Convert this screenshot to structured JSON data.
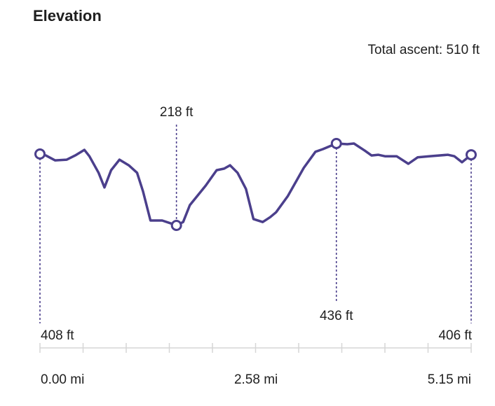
{
  "header": {
    "title": "Elevation",
    "total_ascent": "Total ascent: 510 ft"
  },
  "chart_data": {
    "type": "line",
    "title": "Elevation",
    "xunit": "mi",
    "yunit": "ft",
    "xlim": [
      0,
      5.15
    ],
    "line_color": "#4b3f8c",
    "x": [
      0.0,
      0.07,
      0.18,
      0.32,
      0.42,
      0.53,
      0.59,
      0.7,
      0.77,
      0.85,
      0.95,
      1.06,
      1.16,
      1.23,
      1.32,
      1.46,
      1.58,
      1.63,
      1.71,
      1.79,
      1.98,
      2.11,
      2.2,
      2.27,
      2.36,
      2.46,
      2.55,
      2.66,
      2.75,
      2.82,
      2.96,
      3.15,
      3.29,
      3.38,
      3.54,
      3.67,
      3.75,
      3.88,
      3.96,
      4.04,
      4.12,
      4.26,
      4.4,
      4.51,
      4.65,
      4.87,
      4.95,
      5.04,
      5.15
    ],
    "y": [
      408,
      404,
      391,
      393,
      404,
      419,
      402,
      358,
      319,
      365,
      393,
      378,
      358,
      309,
      231,
      231,
      222,
      218,
      227,
      272,
      324,
      365,
      369,
      378,
      358,
      315,
      235,
      227,
      240,
      253,
      296,
      371,
      414,
      421,
      436,
      434,
      436,
      417,
      404,
      406,
      402,
      402,
      382,
      399,
      402,
      406,
      402,
      386,
      406
    ],
    "markers": [
      {
        "x": 0.0,
        "y": 408,
        "label": "408 ft",
        "label_pos": "below-left"
      },
      {
        "x": 1.63,
        "y": 218,
        "label": "218 ft",
        "label_pos": "above"
      },
      {
        "x": 3.54,
        "y": 436,
        "label": "436 ft",
        "label_pos": "below"
      },
      {
        "x": 5.15,
        "y": 406,
        "label": "406 ft",
        "label_pos": "below-right"
      }
    ],
    "x_tick_count": 11,
    "x_tick_labels": [
      "0.00 mi",
      "2.58 mi",
      "5.15 mi"
    ],
    "x_tick_label_values": [
      0,
      2.58,
      5.15
    ]
  }
}
